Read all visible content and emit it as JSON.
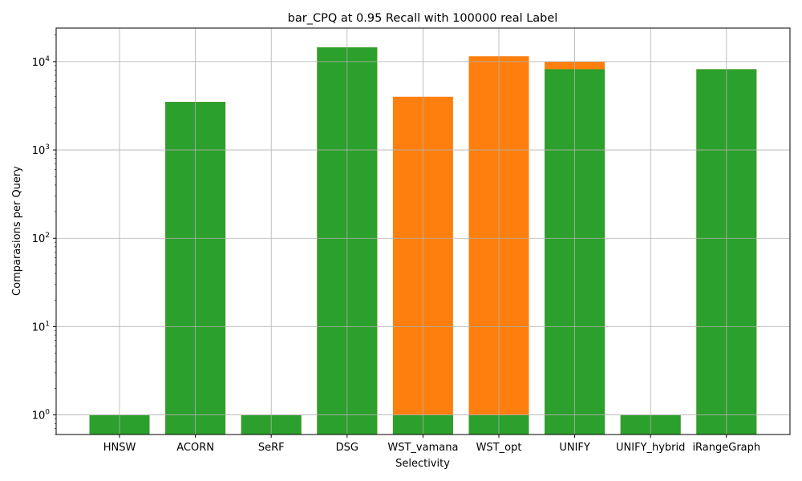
{
  "chart_data": {
    "type": "bar",
    "title": "bar_CPQ at 0.95 Recall with 100000 real Label",
    "xlabel": "Selectivity",
    "ylabel": "Comparasions per Query",
    "yscale": "log",
    "ylim": [
      0.6,
      24000
    ],
    "yticks": [
      1,
      10,
      100,
      1000,
      10000
    ],
    "ytick_labels": [
      {
        "base": "10",
        "exp": "0"
      },
      {
        "base": "10",
        "exp": "1"
      },
      {
        "base": "10",
        "exp": "2"
      },
      {
        "base": "10",
        "exp": "3"
      },
      {
        "base": "10",
        "exp": "4"
      }
    ],
    "grid": true,
    "categories": [
      "HNSW",
      "ACORN",
      "SeRF",
      "DSG",
      "WST_vamana",
      "WST_opt",
      "UNIFY",
      "UNIFY_hybrid",
      "iRangeGraph"
    ],
    "series": [
      {
        "color": "#ff7f0e",
        "values": [
          1,
          3500,
          1,
          14500,
          4000,
          11500,
          10000,
          1,
          8200
        ]
      },
      {
        "color": "#2ca02c",
        "values": [
          1,
          3500,
          1,
          14500,
          1,
          1,
          8200,
          1,
          8200
        ]
      }
    ]
  }
}
